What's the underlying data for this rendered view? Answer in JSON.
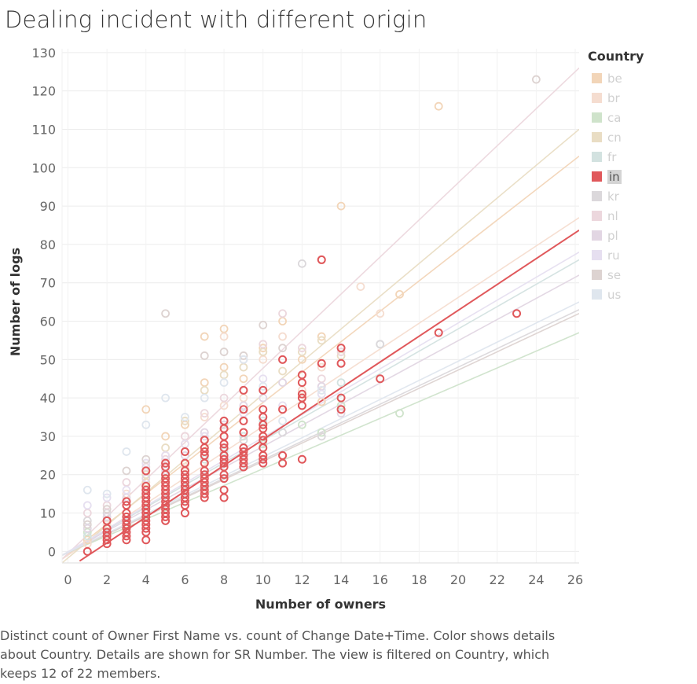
{
  "title": "Dealing incident with different origin",
  "footnote": "Distinct count of Owner First Name vs. count of Change Date+Time.  Color shows details about Country.  Details are shown for SR Number. The view is filtered on Country, which keeps 12 of 22 members.",
  "chart_data": {
    "type": "scatter",
    "title": "Dealing incident with different origin",
    "xlabel": "Number of owners",
    "ylabel": "Number of logs",
    "xlim": [
      -0.3,
      26.2
    ],
    "ylim": [
      -3,
      131
    ],
    "x_ticks": [
      0,
      2,
      4,
      6,
      8,
      10,
      12,
      14,
      16,
      18,
      20,
      22,
      24,
      26
    ],
    "y_ticks": [
      0,
      10,
      20,
      30,
      40,
      50,
      60,
      70,
      80,
      90,
      100,
      110,
      120,
      130
    ],
    "grid": true,
    "legend_title": "Country",
    "legend_position": "right",
    "highlighted": "in",
    "series": [
      {
        "name": "be",
        "color": "#f2d5b8",
        "trend": [
          [
            -0.3,
            -2
          ],
          [
            26.2,
            103
          ]
        ],
        "points": [
          [
            1,
            3
          ],
          [
            2,
            5
          ],
          [
            3,
            12
          ],
          [
            4,
            37
          ],
          [
            5,
            25
          ],
          [
            6,
            33
          ],
          [
            7,
            56
          ],
          [
            8,
            58
          ],
          [
            9,
            45
          ],
          [
            10,
            53
          ],
          [
            11,
            60
          ],
          [
            12,
            44
          ],
          [
            13,
            56
          ],
          [
            14,
            90
          ],
          [
            17,
            67
          ],
          [
            19,
            116
          ],
          [
            4,
            18
          ],
          [
            5,
            30
          ],
          [
            6,
            28
          ],
          [
            7,
            44
          ],
          [
            8,
            48
          ],
          [
            10,
            52
          ],
          [
            12,
            50
          ],
          [
            13,
            39
          ]
        ]
      },
      {
        "name": "br",
        "color": "#f5ddd0",
        "trend": [
          [
            -0.3,
            -2
          ],
          [
            26.2,
            87
          ]
        ],
        "points": [
          [
            1,
            2
          ],
          [
            2,
            7
          ],
          [
            3,
            10
          ],
          [
            4,
            14
          ],
          [
            5,
            18
          ],
          [
            6,
            22
          ],
          [
            7,
            35
          ],
          [
            8,
            56
          ],
          [
            9,
            40
          ],
          [
            10,
            50
          ],
          [
            11,
            56
          ],
          [
            12,
            42
          ],
          [
            13,
            48
          ],
          [
            15,
            69
          ],
          [
            16,
            62
          ],
          [
            3,
            15
          ],
          [
            6,
            30
          ],
          [
            7,
            30
          ],
          [
            8,
            38
          ],
          [
            9,
            36
          ]
        ]
      },
      {
        "name": "ca",
        "color": "#cfe3cb",
        "trend": [
          [
            -0.3,
            -1
          ],
          [
            26.2,
            57
          ]
        ],
        "points": [
          [
            1,
            5
          ],
          [
            2,
            8
          ],
          [
            3,
            9
          ],
          [
            4,
            12
          ],
          [
            5,
            14
          ],
          [
            6,
            16
          ],
          [
            7,
            20
          ],
          [
            8,
            22
          ],
          [
            9,
            24
          ],
          [
            10,
            28
          ],
          [
            12,
            33
          ],
          [
            13,
            31
          ],
          [
            14,
            38
          ],
          [
            17,
            36
          ]
        ]
      },
      {
        "name": "cn",
        "color": "#e9ddc4",
        "trend": [
          [
            -0.3,
            -3
          ],
          [
            26.2,
            110
          ]
        ],
        "points": [
          [
            2,
            8
          ],
          [
            3,
            13
          ],
          [
            4,
            20
          ],
          [
            5,
            27
          ],
          [
            6,
            34
          ],
          [
            7,
            42
          ],
          [
            8,
            46
          ],
          [
            9,
            48
          ],
          [
            10,
            52
          ],
          [
            11,
            47
          ],
          [
            12,
            52
          ],
          [
            13,
            55
          ],
          [
            14,
            51
          ]
        ]
      },
      {
        "name": "fr",
        "color": "#d3e2e0",
        "trend": [
          [
            -0.3,
            -1
          ],
          [
            26.2,
            76
          ]
        ],
        "points": [
          [
            1,
            4
          ],
          [
            2,
            6
          ],
          [
            3,
            8
          ],
          [
            4,
            11
          ],
          [
            5,
            15
          ],
          [
            6,
            20
          ],
          [
            7,
            24
          ],
          [
            8,
            26
          ],
          [
            9,
            30
          ],
          [
            10,
            34
          ],
          [
            12,
            40
          ],
          [
            14,
            44
          ],
          [
            16,
            54
          ]
        ]
      },
      {
        "name": "in",
        "color": "#e0585b",
        "trend": [
          [
            0.6,
            -2.5
          ],
          [
            26.2,
            83.7
          ]
        ],
        "points": [
          [
            1,
            0
          ],
          [
            2,
            2
          ],
          [
            2,
            3
          ],
          [
            2,
            4
          ],
          [
            2,
            5
          ],
          [
            2,
            6
          ],
          [
            2,
            8
          ],
          [
            3,
            3
          ],
          [
            3,
            4
          ],
          [
            3,
            5
          ],
          [
            3,
            6
          ],
          [
            3,
            7
          ],
          [
            3,
            8
          ],
          [
            3,
            9
          ],
          [
            3,
            10
          ],
          [
            3,
            12
          ],
          [
            3,
            13
          ],
          [
            4,
            3
          ],
          [
            4,
            5
          ],
          [
            4,
            6
          ],
          [
            4,
            7
          ],
          [
            4,
            8
          ],
          [
            4,
            9
          ],
          [
            4,
            10
          ],
          [
            4,
            11
          ],
          [
            4,
            12
          ],
          [
            4,
            13
          ],
          [
            4,
            14
          ],
          [
            4,
            15
          ],
          [
            4,
            16
          ],
          [
            4,
            17
          ],
          [
            4,
            21
          ],
          [
            5,
            8
          ],
          [
            5,
            9
          ],
          [
            5,
            10
          ],
          [
            5,
            11
          ],
          [
            5,
            12
          ],
          [
            5,
            13
          ],
          [
            5,
            14
          ],
          [
            5,
            15
          ],
          [
            5,
            16
          ],
          [
            5,
            17
          ],
          [
            5,
            18
          ],
          [
            5,
            19
          ],
          [
            5,
            20
          ],
          [
            5,
            22
          ],
          [
            5,
            23
          ],
          [
            6,
            10
          ],
          [
            6,
            12
          ],
          [
            6,
            13
          ],
          [
            6,
            14
          ],
          [
            6,
            15
          ],
          [
            6,
            16
          ],
          [
            6,
            17
          ],
          [
            6,
            18
          ],
          [
            6,
            19
          ],
          [
            6,
            20
          ],
          [
            6,
            21
          ],
          [
            6,
            23
          ],
          [
            6,
            26
          ],
          [
            7,
            14
          ],
          [
            7,
            15
          ],
          [
            7,
            16
          ],
          [
            7,
            17
          ],
          [
            7,
            18
          ],
          [
            7,
            19
          ],
          [
            7,
            20
          ],
          [
            7,
            21
          ],
          [
            7,
            23
          ],
          [
            7,
            25
          ],
          [
            7,
            26
          ],
          [
            7,
            27
          ],
          [
            7,
            29
          ],
          [
            8,
            14
          ],
          [
            8,
            16
          ],
          [
            8,
            19
          ],
          [
            8,
            20
          ],
          [
            8,
            22
          ],
          [
            8,
            23
          ],
          [
            8,
            24
          ],
          [
            8,
            25
          ],
          [
            8,
            27
          ],
          [
            8,
            28
          ],
          [
            8,
            30
          ],
          [
            8,
            32
          ],
          [
            8,
            34
          ],
          [
            9,
            22
          ],
          [
            9,
            23
          ],
          [
            9,
            24
          ],
          [
            9,
            25
          ],
          [
            9,
            26
          ],
          [
            9,
            27
          ],
          [
            9,
            31
          ],
          [
            9,
            34
          ],
          [
            9,
            37
          ],
          [
            9,
            42
          ],
          [
            10,
            23
          ],
          [
            10,
            24
          ],
          [
            10,
            25
          ],
          [
            10,
            27
          ],
          [
            10,
            29
          ],
          [
            10,
            30
          ],
          [
            10,
            32
          ],
          [
            10,
            33
          ],
          [
            10,
            35
          ],
          [
            10,
            37
          ],
          [
            10,
            42
          ],
          [
            11,
            23
          ],
          [
            11,
            25
          ],
          [
            11,
            37
          ],
          [
            11,
            50
          ],
          [
            12,
            24
          ],
          [
            12,
            38
          ],
          [
            12,
            40
          ],
          [
            12,
            41
          ],
          [
            12,
            44
          ],
          [
            12,
            46
          ],
          [
            13,
            49
          ],
          [
            13,
            76
          ],
          [
            14,
            37
          ],
          [
            14,
            40
          ],
          [
            14,
            49
          ],
          [
            14,
            53
          ],
          [
            16,
            45
          ],
          [
            19,
            57
          ],
          [
            23,
            62
          ]
        ]
      },
      {
        "name": "kr",
        "color": "#dbd8db",
        "trend": [
          [
            -0.3,
            -1
          ],
          [
            26.2,
            63
          ]
        ],
        "points": [
          [
            1,
            8
          ],
          [
            2,
            10
          ],
          [
            3,
            12
          ],
          [
            4,
            14
          ],
          [
            5,
            18
          ],
          [
            6,
            21
          ],
          [
            7,
            25
          ],
          [
            8,
            27
          ],
          [
            9,
            29
          ],
          [
            10,
            35
          ],
          [
            11,
            31
          ],
          [
            12,
            75
          ],
          [
            13,
            30
          ],
          [
            16,
            54
          ]
        ]
      },
      {
        "name": "nl",
        "color": "#ecd7dd",
        "trend": [
          [
            -0.3,
            -2
          ],
          [
            26.2,
            126
          ]
        ],
        "points": [
          [
            1,
            10
          ],
          [
            2,
            12
          ],
          [
            3,
            18
          ],
          [
            4,
            22
          ],
          [
            5,
            24
          ],
          [
            6,
            30
          ],
          [
            7,
            36
          ],
          [
            8,
            40
          ],
          [
            9,
            50
          ],
          [
            10,
            54
          ],
          [
            11,
            62
          ],
          [
            12,
            53
          ],
          [
            13,
            45
          ],
          [
            14,
            52
          ]
        ]
      },
      {
        "name": "pl",
        "color": "#e2d6e3",
        "trend": [
          [
            -0.3,
            -1
          ],
          [
            26.2,
            72
          ]
        ],
        "points": [
          [
            1,
            6
          ],
          [
            2,
            9
          ],
          [
            3,
            14
          ],
          [
            4,
            19
          ],
          [
            5,
            21
          ],
          [
            6,
            25
          ],
          [
            7,
            31
          ],
          [
            8,
            33
          ],
          [
            9,
            38
          ],
          [
            10,
            40
          ],
          [
            11,
            44
          ],
          [
            12,
            46
          ],
          [
            13,
            43
          ],
          [
            14,
            36
          ]
        ]
      },
      {
        "name": "ru",
        "color": "#e6dff0",
        "trend": [
          [
            -0.3,
            -1
          ],
          [
            26.2,
            78
          ]
        ],
        "points": [
          [
            1,
            12
          ],
          [
            2,
            14
          ],
          [
            3,
            16
          ],
          [
            4,
            23
          ],
          [
            5,
            25
          ],
          [
            6,
            28
          ],
          [
            7,
            30
          ],
          [
            8,
            34
          ],
          [
            9,
            36
          ],
          [
            10,
            45
          ],
          [
            11,
            38
          ],
          [
            13,
            41
          ]
        ]
      },
      {
        "name": "se",
        "color": "#ddd3d1",
        "trend": [
          [
            -0.3,
            -1
          ],
          [
            26.2,
            62
          ]
        ],
        "points": [
          [
            1,
            7
          ],
          [
            2,
            11
          ],
          [
            3,
            21
          ],
          [
            4,
            24
          ],
          [
            5,
            62
          ],
          [
            6,
            26
          ],
          [
            7,
            51
          ],
          [
            8,
            52
          ],
          [
            9,
            51
          ],
          [
            10,
            59
          ],
          [
            11,
            53
          ],
          [
            24,
            123
          ]
        ]
      },
      {
        "name": "us",
        "color": "#dfe6ee",
        "trend": [
          [
            -0.3,
            -1
          ],
          [
            26.2,
            65
          ]
        ],
        "points": [
          [
            1,
            16
          ],
          [
            2,
            15
          ],
          [
            3,
            26
          ],
          [
            4,
            33
          ],
          [
            5,
            40
          ],
          [
            6,
            35
          ],
          [
            7,
            40
          ],
          [
            8,
            44
          ],
          [
            9,
            50
          ],
          [
            10,
            43
          ],
          [
            11,
            34
          ],
          [
            13,
            42
          ]
        ]
      }
    ]
  }
}
